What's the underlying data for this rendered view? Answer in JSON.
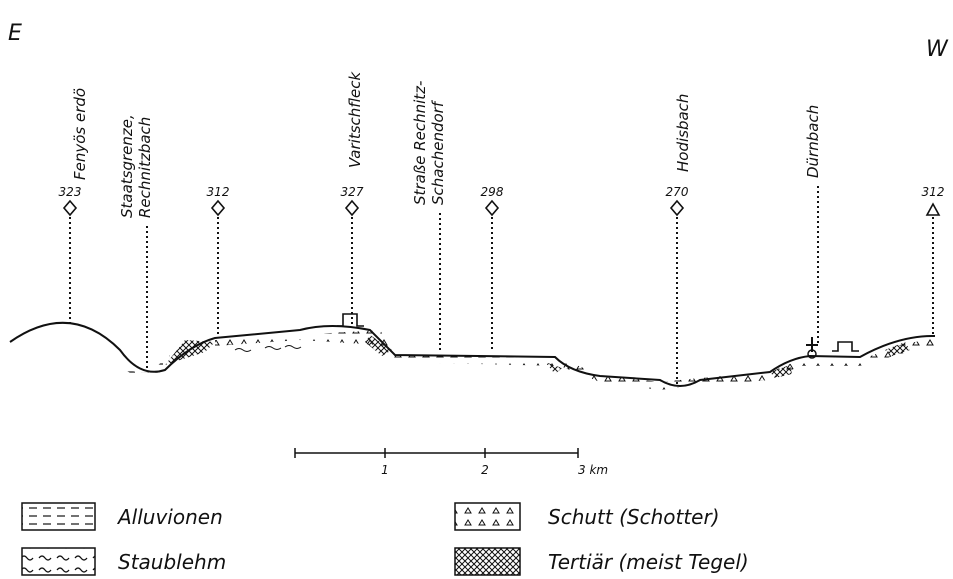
{
  "header": {
    "left": "E",
    "right": "W"
  },
  "profile": {
    "place_labels": [
      [
        "Fenyös erdö"
      ],
      [
        "Staatsgrenze,",
        "Rechnitzbach"
      ],
      [
        "Varitschfleck"
      ],
      [
        "Straße Rechnitz-",
        "Schachendorf"
      ],
      [
        "Hodisbach"
      ],
      [
        "Dürnbach"
      ]
    ],
    "elevations": [
      323,
      312,
      327,
      298,
      270,
      312
    ]
  },
  "scale": {
    "labels": [
      "1",
      "2",
      "3 km"
    ]
  },
  "legend": [
    "Alluvionen",
    "Staublehm",
    "Schutt (Schotter)",
    "Tertiär (meist Tegel)"
  ]
}
